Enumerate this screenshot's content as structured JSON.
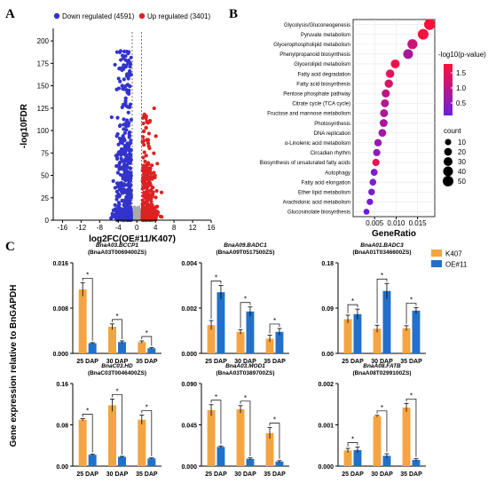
{
  "panels": {
    "a": "A",
    "b": "B",
    "c": "C"
  },
  "chart_data": [
    {
      "type": "scatter",
      "subtype": "volcano",
      "xlabel": "log2FC(OE#11/K407)",
      "ylabel": "-log10FDR",
      "xlim": [
        -18,
        16
      ],
      "ylim": [
        0,
        210
      ],
      "xticks": [
        -16,
        -12,
        -8,
        -4,
        0,
        4,
        8,
        12,
        16
      ],
      "yticks": [
        0,
        25,
        50,
        75,
        100,
        125,
        150,
        175,
        200
      ],
      "series": [
        {
          "name": "Down regulated (4591)",
          "color": "#3333cc"
        },
        {
          "name": "Up regulated (3401)",
          "color": "#dd2222"
        }
      ],
      "nonsignificant_color": "#aaaaaa",
      "thresholds": {
        "log2fc": [
          -1,
          1
        ]
      },
      "legend_position": "top"
    },
    {
      "type": "scatter",
      "subtype": "dotplot",
      "xlabel": "GeneRatio",
      "xlim": [
        0,
        0.019
      ],
      "xticks": [
        0.005,
        0.01,
        0.015
      ],
      "xtick_labels": [
        "0.005",
        "0.010",
        "0.015"
      ],
      "terms": [
        {
          "name": "Glycolysis/Gluconeogenesis",
          "ratio": 0.0178,
          "count": 55,
          "p": 1.9
        },
        {
          "name": "Pyruvate metabolism",
          "ratio": 0.0163,
          "count": 50,
          "p": 1.85
        },
        {
          "name": "Glycerophospholipid metabolism",
          "ratio": 0.0138,
          "count": 42,
          "p": 1.3
        },
        {
          "name": "Phenylpropanoid biosynthesis",
          "ratio": 0.0128,
          "count": 40,
          "p": 0.9
        },
        {
          "name": "Glycerolipid metabolism",
          "ratio": 0.0098,
          "count": 30,
          "p": 1.75
        },
        {
          "name": "Fatty acid degradation",
          "ratio": 0.0086,
          "count": 26,
          "p": 1.6
        },
        {
          "name": "Fatty acid biosynthesis",
          "ratio": 0.0083,
          "count": 25,
          "p": 1.45
        },
        {
          "name": "Pentose phosphate pathway",
          "ratio": 0.0076,
          "count": 23,
          "p": 1.15
        },
        {
          "name": "Citrate cycle (TCA cycle)",
          "ratio": 0.0074,
          "count": 22,
          "p": 1.05
        },
        {
          "name": "Fructose and mannose metabolism",
          "ratio": 0.0072,
          "count": 22,
          "p": 0.95
        },
        {
          "name": "Photosynthesis",
          "ratio": 0.0071,
          "count": 21,
          "p": 0.9
        },
        {
          "name": "DNA replication",
          "ratio": 0.0068,
          "count": 20,
          "p": 0.8
        },
        {
          "name": "α-Linolenic acid metabolism",
          "ratio": 0.0058,
          "count": 17,
          "p": 0.7
        },
        {
          "name": "Circadian rhythm",
          "ratio": 0.0055,
          "count": 16,
          "p": 0.6
        },
        {
          "name": "Biosynthesis of unsaturated fatty acids",
          "ratio": 0.0053,
          "count": 16,
          "p": 1.65
        },
        {
          "name": "Autophagy",
          "ratio": 0.0049,
          "count": 14,
          "p": 0.45
        },
        {
          "name": "Fatty acid elongation",
          "ratio": 0.0046,
          "count": 13,
          "p": 0.4
        },
        {
          "name": "Ether lipid metabolism",
          "ratio": 0.0043,
          "count": 12,
          "p": 0.35
        },
        {
          "name": "Arachidonic acid metabolism",
          "ratio": 0.0039,
          "count": 11,
          "p": 0.3
        },
        {
          "name": "Glucosinolate biosynthesis",
          "ratio": 0.0031,
          "count": 8,
          "p": 0.2
        }
      ],
      "color_legend": {
        "title": "-log10(p-value)",
        "ticks": [
          "1.5",
          "1.0",
          "0.5"
        ],
        "low_color": "#6a1fe0",
        "high_color": "#ff0f3a"
      },
      "size_legend": {
        "title": "count",
        "values": [
          10,
          20,
          30,
          40,
          50
        ]
      }
    },
    {
      "type": "bar",
      "subtype": "grouped_bar_panels",
      "ylabel": "Gene expression relative to BnGAPDH",
      "categories": [
        "25 DAP",
        "30 DAP",
        "35 DAP"
      ],
      "series_names": [
        "K407",
        "OE#11"
      ],
      "series_colors": [
        "#f4a442",
        "#2270c9"
      ],
      "significance_mark": "*",
      "panels": [
        {
          "gene": "BnaA03.BCCP1",
          "id": "(BnaA03T0069400ZS)",
          "ylim": [
            0,
            0.016
          ],
          "yticks": [
            "0.000",
            "0.008",
            "0.016"
          ],
          "values": [
            [
              0.0113,
              0.0047,
              0.002
            ],
            [
              0.0018,
              0.002,
              0.0009
            ]
          ],
          "errors": [
            [
              0.0012,
              0.0005,
              0.0002
            ],
            [
              0.0001,
              0.0002,
              0.0001
            ]
          ]
        },
        {
          "gene": "BnaA09.BADC1",
          "id": "(BnaA09T0517500ZS)",
          "ylim": [
            0,
            0.004
          ],
          "yticks": [
            "0.000",
            "0.002",
            "0.004"
          ],
          "values": [
            [
              0.00125,
              0.00095,
              0.00065
            ],
            [
              0.0027,
              0.00185,
              0.00095
            ]
          ],
          "errors": [
            [
              0.0002,
              0.0001,
              0.00015
            ],
            [
              0.0003,
              0.0002,
              0.00015
            ]
          ]
        },
        {
          "gene": "BnaA01.BADC3",
          "id": "(BnaA01T0346600ZS)",
          "ylim": [
            0,
            0.18
          ],
          "yticks": [
            "0.00",
            "0.09",
            "0.18"
          ],
          "values": [
            [
              0.068,
              0.049,
              0.05
            ],
            [
              0.078,
              0.124,
              0.085
            ]
          ],
          "errors": [
            [
              0.008,
              0.007,
              0.005
            ],
            [
              0.01,
              0.015,
              0.006
            ]
          ]
        },
        {
          "gene": "BnaC03.HD",
          "id": "(BnaC03T0046400ZS)",
          "ylim": [
            0,
            0.16
          ],
          "yticks": [
            "0.00",
            "0.08",
            "0.16"
          ],
          "values": [
            [
              0.09,
              0.118,
              0.09
            ],
            [
              0.022,
              0.018,
              0.015
            ]
          ],
          "errors": [
            [
              0.002,
              0.012,
              0.009
            ],
            [
              0.001,
              0.001,
              0.001
            ]
          ]
        },
        {
          "gene": "BnaA03.MOD1",
          "id": "(BnaA03T0389700ZS)",
          "ylim": [
            0,
            0.09
          ],
          "yticks": [
            "0.000",
            "0.045",
            "0.090"
          ],
          "values": [
            [
              0.061,
              0.062,
              0.036
            ],
            [
              0.021,
              0.008,
              0.005
            ]
          ],
          "errors": [
            [
              0.006,
              0.004,
              0.006
            ],
            [
              0.001,
              0.001,
              0.001
            ]
          ]
        },
        {
          "gene": "BnaA08.FATB",
          "id": "(BnaA08T0299100ZS)",
          "ylim": [
            0,
            0.002
          ],
          "yticks": [
            "0.000",
            "0.001",
            "0.002"
          ],
          "values": [
            [
              0.00038,
              0.00121,
              0.00142
            ],
            [
              0.00039,
              0.00025,
              0.00015
            ]
          ],
          "errors": [
            [
              5e-05,
              2e-05,
              0.0001
            ],
            [
              7e-05,
              5e-05,
              3e-05
            ]
          ]
        }
      ]
    }
  ]
}
